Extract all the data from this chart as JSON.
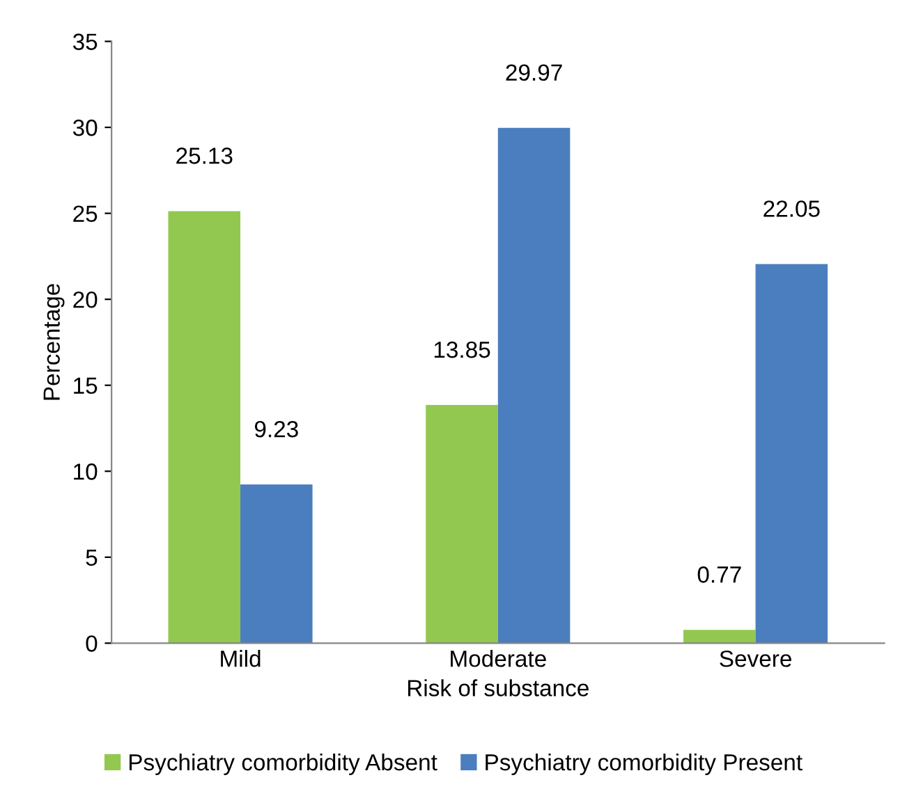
{
  "chart_data": {
    "type": "bar",
    "xlabel": "Risk of substance",
    "ylabel": "Percentage",
    "categories": [
      "Mild",
      "Moderate",
      "Severe"
    ],
    "series": [
      {
        "name": "Psychiatry comorbidity Absent",
        "color": "#92c84f",
        "values": [
          25.13,
          13.85,
          0.77
        ]
      },
      {
        "name": "Psychiatry comorbidity Present",
        "color": "#4a7ebf",
        "values": [
          9.23,
          29.97,
          22.05
        ]
      }
    ],
    "ylim": [
      0,
      35
    ],
    "yticks": [
      0,
      5,
      10,
      15,
      20,
      25,
      30,
      35
    ],
    "data_labels": true,
    "grid": false,
    "legend": "bottom"
  }
}
